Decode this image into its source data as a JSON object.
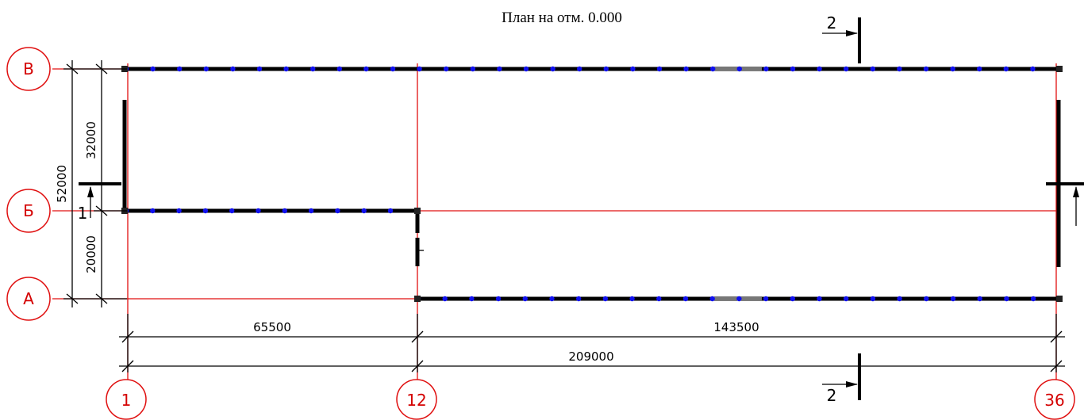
{
  "title": "План на отм. 0.000",
  "axes_letters": [
    "А",
    "Б",
    "В"
  ],
  "axes_numbers": [
    "1",
    "12",
    "36"
  ],
  "dimensions": {
    "vertical_total": "52000",
    "vertical_upper": "32000",
    "vertical_lower": "20000",
    "horizontal_left": "65500",
    "horizontal_right": "143500",
    "horizontal_total": "209000"
  },
  "section_marks": {
    "section_1": "1",
    "section_2_top": "2",
    "section_2_bottom": "2"
  },
  "colors": {
    "grid_line": "#e01010",
    "wall": "#000000",
    "column": "#1010ee"
  }
}
